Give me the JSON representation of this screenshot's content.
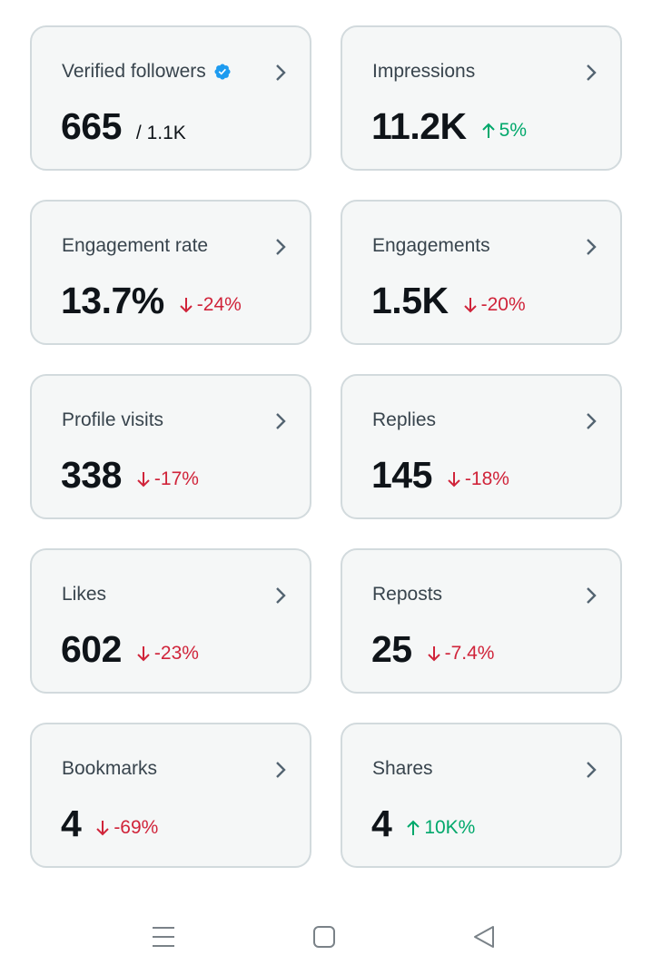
{
  "cards": [
    {
      "label": "Verified followers",
      "value": "665",
      "sub": "/ 1.1K",
      "verified": true
    },
    {
      "label": "Impressions",
      "value": "11.2K",
      "delta": "5%",
      "direction": "up"
    },
    {
      "label": "Engagement rate",
      "value": "13.7%",
      "delta": "-24%",
      "direction": "down"
    },
    {
      "label": "Engagements",
      "value": "1.5K",
      "delta": "-20%",
      "direction": "down"
    },
    {
      "label": "Profile visits",
      "value": "338",
      "delta": "-17%",
      "direction": "down"
    },
    {
      "label": "Replies",
      "value": "145",
      "delta": "-18%",
      "direction": "down"
    },
    {
      "label": "Likes",
      "value": "602",
      "delta": "-23%",
      "direction": "down"
    },
    {
      "label": "Reposts",
      "value": "25",
      "delta": "-7.4%",
      "direction": "down"
    },
    {
      "label": "Bookmarks",
      "value": "4",
      "delta": "-69%",
      "direction": "down"
    },
    {
      "label": "Shares",
      "value": "4",
      "delta": "10K%",
      "direction": "up"
    }
  ],
  "colors": {
    "up": "#00a86b",
    "down": "#d0243a",
    "verified": "#1d9bf0"
  },
  "icons": {
    "chevron": "chevron-right-icon",
    "verified": "verified-badge-icon",
    "up": "arrow-up-icon",
    "down": "arrow-down-icon"
  },
  "nav": [
    {
      "icon": "recent-apps-icon"
    },
    {
      "icon": "home-square-icon"
    },
    {
      "icon": "back-triangle-icon"
    }
  ]
}
